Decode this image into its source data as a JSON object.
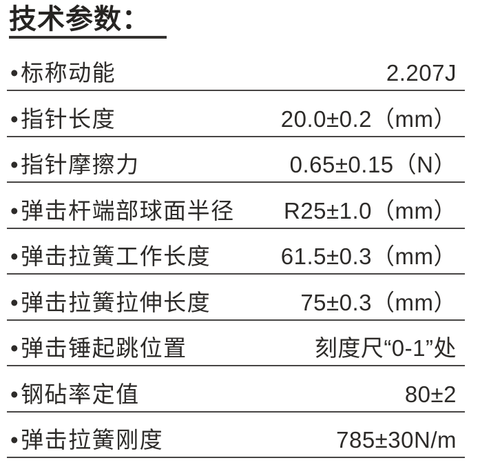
{
  "page": {
    "background": "#ffffff",
    "text_color": "#2d2b29",
    "line_color": "#474544"
  },
  "title": "技术参数：",
  "bullet": "•",
  "parameters": [
    {
      "label": "标称动能",
      "value": "2.207J"
    },
    {
      "label": "指针长度",
      "value": "20.0±0.2（mm）"
    },
    {
      "label": "指针摩擦力",
      "value": "0.65±0.15（N）"
    },
    {
      "label": "弹击杆端部球面半径",
      "value": "R25±1.0（mm）"
    },
    {
      "label": "弹击拉簧工作长度",
      "value": "61.5±0.3（mm）"
    },
    {
      "label": "弹击拉簧拉伸长度",
      "value": "75±0.3（mm）"
    },
    {
      "label": "弹击锤起跳位置",
      "value": "刻度尺“0-1”处"
    },
    {
      "label": "钢砧率定值",
      "value": "80±2"
    },
    {
      "label": "弹击拉簧刚度",
      "value": "785±30N/m"
    }
  ]
}
